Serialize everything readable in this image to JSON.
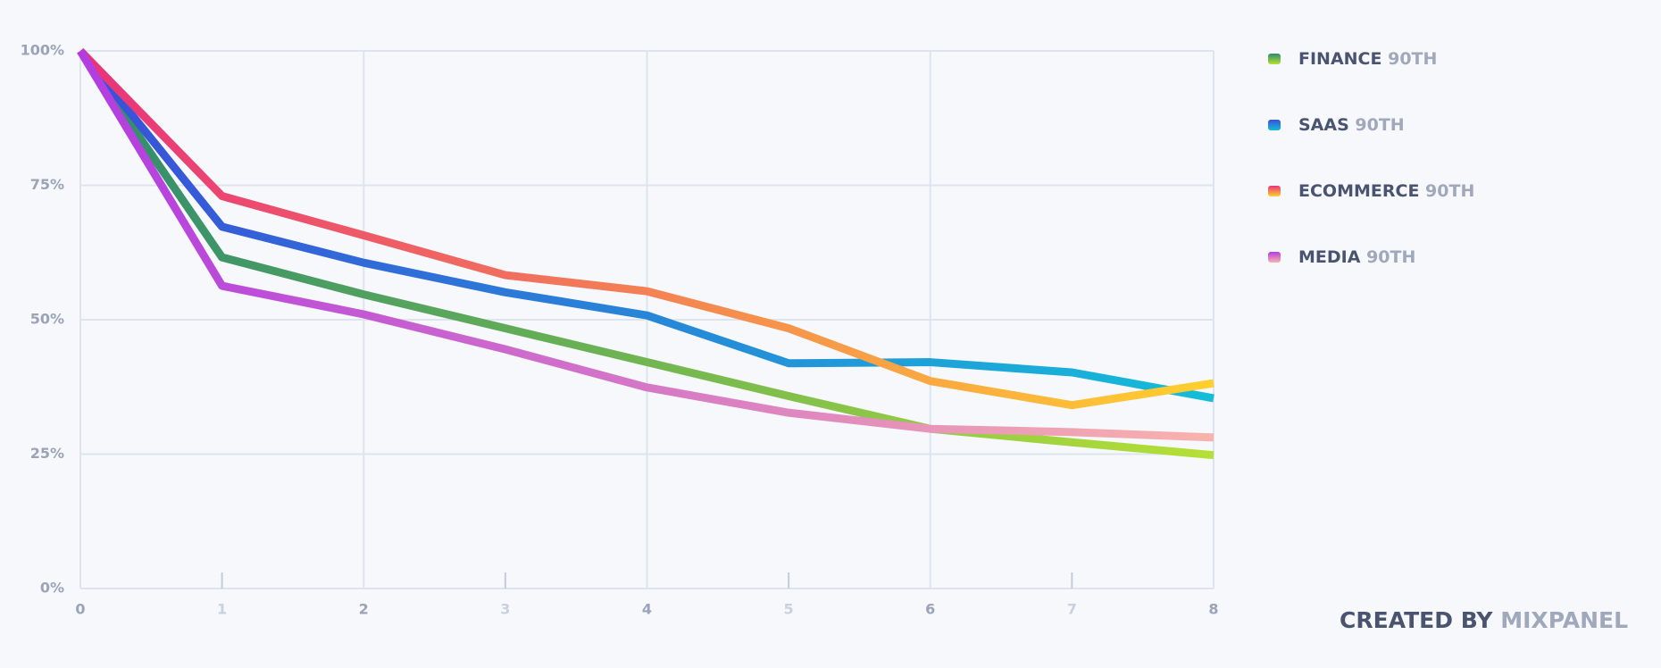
{
  "chart_data": {
    "type": "line",
    "x": [
      0,
      1,
      2,
      3,
      4,
      5,
      6,
      7,
      8
    ],
    "xlim": [
      0,
      8
    ],
    "xticks": [
      0,
      1,
      2,
      3,
      4,
      5,
      6,
      7,
      8
    ],
    "ylim": [
      0,
      100
    ],
    "yticks": [
      {
        "value": 0,
        "label": "0%"
      },
      {
        "value": 25,
        "label": "25%"
      },
      {
        "value": 50,
        "label": "50%"
      },
      {
        "value": 75,
        "label": "75%"
      },
      {
        "value": 100,
        "label": "100%"
      }
    ],
    "grid": true,
    "series": [
      {
        "name": "FINANCE",
        "percentile": "90TH",
        "color": [
          "#2e8b6e",
          "#b5e035"
        ],
        "values": [
          100,
          61.6,
          54.7,
          48.4,
          42.1,
          35.8,
          29.7,
          27.2,
          24.8
        ]
      },
      {
        "name": "SAAS",
        "percentile": "90TH",
        "color": [
          "#3a4fd8",
          "#14bdd8"
        ],
        "values": [
          100,
          67.3,
          60.6,
          55.1,
          50.8,
          41.9,
          42.1,
          40.2,
          35.4
        ]
      },
      {
        "name": "ECOMMERCE",
        "percentile": "90TH",
        "color": [
          "#e8337a",
          "#ffd02e"
        ],
        "values": [
          100,
          73.0,
          65.7,
          58.3,
          55.3,
          48.4,
          38.6,
          34.1,
          38.2
        ]
      },
      {
        "name": "MEDIA",
        "percentile": "90TH",
        "color": [
          "#b23ce0",
          "#f9b3ac"
        ],
        "values": [
          100,
          56.3,
          51.0,
          44.5,
          37.4,
          32.7,
          29.7,
          29.1,
          28.1
        ]
      }
    ]
  },
  "footer": {
    "prefix": "CREATED BY",
    "brand": "MIXPANEL"
  }
}
